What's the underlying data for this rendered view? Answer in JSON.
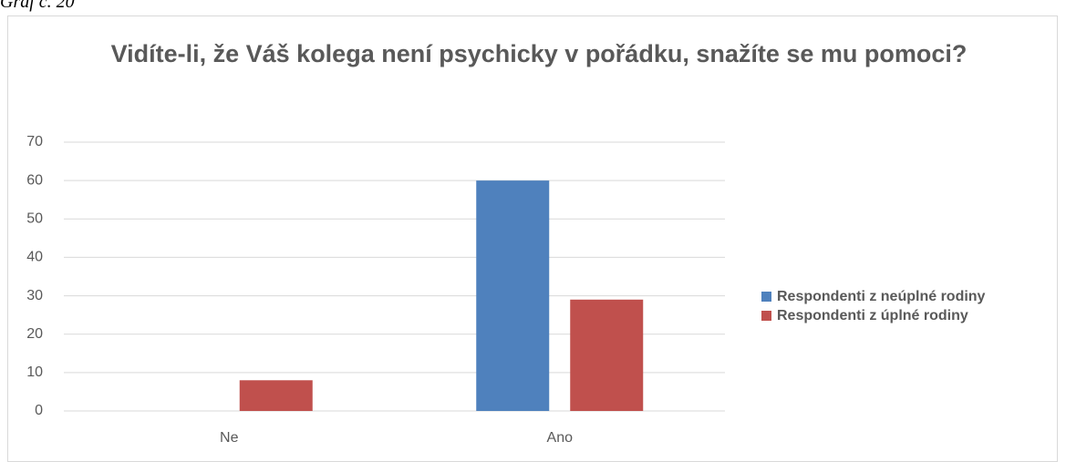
{
  "caption": "Graf č. 20",
  "chart_data": {
    "type": "bar",
    "title": "Vidíte-li, že Váš kolega není psychicky v pořádku, snažíte se mu pomoci?",
    "categories": [
      "Ne",
      "Ano"
    ],
    "series": [
      {
        "name": "Respondenti z neúplné rodiny",
        "color": "#4f81bd",
        "values": [
          0,
          60
        ]
      },
      {
        "name": "Respondenti z úplné rodiny",
        "color": "#c0504d",
        "values": [
          8,
          29
        ]
      }
    ],
    "ylim": [
      0,
      70
    ],
    "yticks": [
      0,
      10,
      20,
      30,
      40,
      50,
      60,
      70
    ],
    "grid": true,
    "legend": "right"
  }
}
